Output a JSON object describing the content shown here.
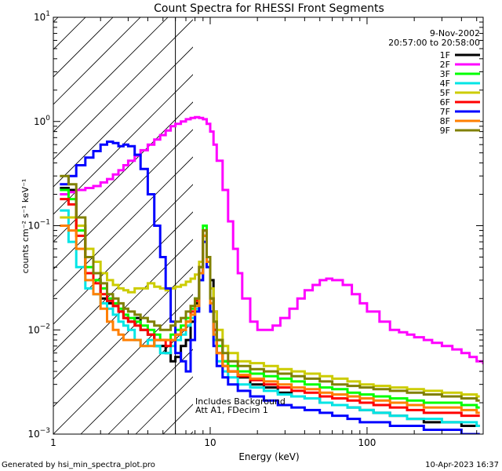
{
  "chart_data": {
    "type": "line",
    "title": "Count Spectra for RHESSI Front Segments",
    "xlabel": "Energy (keV)",
    "ylabel": "counts cm⁻² s⁻¹ keV⁻¹",
    "x_scale": "log",
    "y_scale": "log",
    "xlim": [
      1,
      550
    ],
    "ylim": [
      0.001,
      10
    ],
    "x_ticks": [
      {
        "value": 1,
        "label": "1"
      },
      {
        "value": 10,
        "label": "10"
      },
      {
        "value": 100,
        "label": "100"
      }
    ],
    "y_ticks": [
      {
        "value": 0.001,
        "base": "10",
        "exp": "−3"
      },
      {
        "value": 0.01,
        "base": "10",
        "exp": "−2"
      },
      {
        "value": 0.1,
        "base": "10",
        "exp": "−1"
      },
      {
        "value": 1,
        "base": "10",
        "exp": "0"
      },
      {
        "value": 10,
        "base": "10",
        "exp": "1"
      }
    ],
    "date": "9-Nov-2002",
    "time_range": "20:57:00 to 20:58:00",
    "annotations": [
      "Includes Background",
      "Att A1, FDecim 1"
    ],
    "shaded_region_kev": [
      1,
      6
    ],
    "footer_left": "Generated by hsi_min_spectra_plot.pro",
    "footer_right": "10-Apr-2023 16:37",
    "series": [
      {
        "name": "1F",
        "color": "#000000",
        "x": [
          1.1,
          1.25,
          1.4,
          1.6,
          1.8,
          2,
          2.2,
          2.4,
          2.6,
          2.8,
          3,
          3.3,
          3.6,
          4,
          4.4,
          4.8,
          5.2,
          5.6,
          6,
          6.5,
          7,
          7.5,
          8,
          8.5,
          9,
          9.5,
          10,
          10.5,
          11,
          12,
          13,
          15,
          18,
          22,
          27,
          33,
          40,
          50,
          60,
          75,
          90,
          110,
          140,
          180,
          230,
          300,
          400,
          500
        ],
        "y": [
          0.23,
          0.22,
          0.1,
          0.035,
          0.03,
          0.02,
          0.018,
          0.017,
          0.015,
          0.013,
          0.012,
          0.013,
          0.01,
          0.009,
          0.007,
          0.007,
          0.006,
          0.005,
          0.0055,
          0.007,
          0.008,
          0.012,
          0.018,
          0.035,
          0.08,
          0.05,
          0.03,
          0.015,
          0.008,
          0.005,
          0.004,
          0.0035,
          0.003,
          0.0028,
          0.0025,
          0.0023,
          0.0022,
          0.002,
          0.0019,
          0.0018,
          0.0017,
          0.0016,
          0.0015,
          0.0014,
          0.0013,
          0.0013,
          0.0012,
          0.0012
        ]
      },
      {
        "name": "2F",
        "color": "#ff00ff",
        "x": [
          1.1,
          1.25,
          1.4,
          1.6,
          1.8,
          2,
          2.2,
          2.4,
          2.6,
          2.8,
          3,
          3.3,
          3.6,
          4,
          4.4,
          4.8,
          5.2,
          5.6,
          6,
          6.5,
          7,
          7.5,
          8,
          8.5,
          9,
          9.5,
          10,
          10.5,
          11,
          12,
          13,
          14,
          15,
          16,
          18,
          20,
          22,
          25,
          28,
          32,
          36,
          40,
          45,
          50,
          55,
          60,
          70,
          80,
          90,
          100,
          120,
          140,
          160,
          180,
          200,
          230,
          260,
          300,
          350,
          400,
          450,
          500,
          550
        ],
        "y": [
          0.2,
          0.21,
          0.22,
          0.23,
          0.24,
          0.26,
          0.28,
          0.31,
          0.34,
          0.38,
          0.42,
          0.47,
          0.53,
          0.6,
          0.67,
          0.74,
          0.82,
          0.9,
          0.95,
          1.0,
          1.05,
          1.08,
          1.1,
          1.08,
          1.05,
          0.95,
          0.8,
          0.6,
          0.42,
          0.22,
          0.11,
          0.06,
          0.035,
          0.02,
          0.012,
          0.01,
          0.01,
          0.011,
          0.013,
          0.016,
          0.02,
          0.024,
          0.027,
          0.03,
          0.031,
          0.03,
          0.027,
          0.022,
          0.018,
          0.015,
          0.012,
          0.01,
          0.0095,
          0.009,
          0.0085,
          0.008,
          0.0075,
          0.007,
          0.0065,
          0.006,
          0.0055,
          0.005,
          0.0048
        ]
      },
      {
        "name": "3F",
        "color": "#00ff00",
        "x": [
          1.1,
          1.25,
          1.4,
          1.6,
          1.8,
          2,
          2.2,
          2.4,
          2.6,
          2.8,
          3,
          3.3,
          3.6,
          4,
          4.4,
          4.8,
          5.2,
          5.6,
          6,
          6.5,
          7,
          7.5,
          8,
          8.5,
          9,
          9.5,
          10,
          10.5,
          11,
          12,
          13,
          15,
          18,
          22,
          27,
          33,
          40,
          50,
          60,
          75,
          90,
          110,
          140,
          180,
          230,
          300,
          400,
          500
        ],
        "y": [
          0.22,
          0.18,
          0.09,
          0.04,
          0.03,
          0.025,
          0.02,
          0.018,
          0.016,
          0.014,
          0.013,
          0.012,
          0.011,
          0.01,
          0.009,
          0.008,
          0.008,
          0.009,
          0.01,
          0.011,
          0.013,
          0.016,
          0.02,
          0.04,
          0.1,
          0.05,
          0.02,
          0.01,
          0.007,
          0.005,
          0.0045,
          0.004,
          0.0038,
          0.0036,
          0.0034,
          0.0032,
          0.003,
          0.0028,
          0.0027,
          0.0025,
          0.0024,
          0.0023,
          0.0022,
          0.0021,
          0.002,
          0.002,
          0.0019,
          0.0018
        ]
      },
      {
        "name": "4F",
        "color": "#00e5e5",
        "x": [
          1.1,
          1.25,
          1.4,
          1.6,
          1.8,
          2,
          2.2,
          2.4,
          2.6,
          2.8,
          3,
          3.3,
          3.6,
          4,
          4.4,
          4.8,
          5.2,
          5.6,
          6,
          6.5,
          7,
          7.5,
          8,
          8.5,
          9,
          9.5,
          10,
          10.5,
          11,
          12,
          13,
          15,
          18,
          22,
          27,
          33,
          40,
          50,
          60,
          75,
          90,
          110,
          140,
          180,
          230,
          300,
          400,
          500
        ],
        "y": [
          0.14,
          0.07,
          0.04,
          0.025,
          0.022,
          0.018,
          0.016,
          0.014,
          0.012,
          0.011,
          0.01,
          0.008,
          0.007,
          0.008,
          0.007,
          0.006,
          0.006,
          0.007,
          0.008,
          0.009,
          0.011,
          0.013,
          0.016,
          0.03,
          0.07,
          0.04,
          0.015,
          0.008,
          0.005,
          0.004,
          0.0035,
          0.003,
          0.0028,
          0.0026,
          0.0024,
          0.0023,
          0.0022,
          0.002,
          0.0019,
          0.0018,
          0.0017,
          0.0016,
          0.0015,
          0.0014,
          0.0014,
          0.0013,
          0.0013,
          0.0012
        ]
      },
      {
        "name": "5F",
        "color": "#cccc00",
        "x": [
          1.1,
          1.25,
          1.4,
          1.6,
          1.8,
          2,
          2.2,
          2.4,
          2.6,
          2.8,
          3,
          3.3,
          3.6,
          4,
          4.4,
          4.8,
          5.2,
          5.6,
          6,
          6.5,
          7,
          7.5,
          8,
          8.5,
          9,
          9.5,
          10,
          10.5,
          11,
          12,
          13,
          15,
          18,
          22,
          27,
          33,
          40,
          50,
          60,
          75,
          90,
          110,
          140,
          180,
          230,
          300,
          400,
          500
        ],
        "y": [
          0.12,
          0.12,
          0.1,
          0.06,
          0.045,
          0.035,
          0.03,
          0.027,
          0.025,
          0.024,
          0.023,
          0.025,
          0.025,
          0.028,
          0.026,
          0.025,
          0.024,
          0.025,
          0.026,
          0.027,
          0.029,
          0.031,
          0.034,
          0.045,
          0.08,
          0.05,
          0.025,
          0.015,
          0.01,
          0.007,
          0.006,
          0.005,
          0.0048,
          0.0045,
          0.0042,
          0.004,
          0.0038,
          0.0036,
          0.0034,
          0.0032,
          0.003,
          0.0029,
          0.0028,
          0.0027,
          0.0026,
          0.0025,
          0.0024,
          0.0023
        ]
      },
      {
        "name": "6F",
        "color": "#ff0000",
        "x": [
          1.1,
          1.25,
          1.4,
          1.6,
          1.8,
          2,
          2.2,
          2.4,
          2.6,
          2.8,
          3,
          3.3,
          3.6,
          4,
          4.4,
          4.8,
          5.2,
          5.6,
          6,
          6.5,
          7,
          7.5,
          8,
          8.5,
          9,
          9.5,
          10,
          10.5,
          11,
          12,
          13,
          15,
          18,
          22,
          27,
          33,
          40,
          50,
          60,
          75,
          90,
          110,
          140,
          180,
          230,
          300,
          400,
          500
        ],
        "y": [
          0.18,
          0.16,
          0.08,
          0.035,
          0.028,
          0.022,
          0.019,
          0.017,
          0.015,
          0.013,
          0.012,
          0.011,
          0.01,
          0.009,
          0.008,
          0.008,
          0.007,
          0.008,
          0.009,
          0.01,
          0.012,
          0.015,
          0.019,
          0.04,
          0.09,
          0.05,
          0.02,
          0.01,
          0.006,
          0.0045,
          0.004,
          0.0036,
          0.0033,
          0.003,
          0.0028,
          0.0026,
          0.0025,
          0.0023,
          0.0022,
          0.0021,
          0.002,
          0.0019,
          0.0018,
          0.0017,
          0.0016,
          0.0016,
          0.0015,
          0.0015
        ]
      },
      {
        "name": "7F",
        "color": "#0000ff",
        "x": [
          1.1,
          1.25,
          1.4,
          1.6,
          1.8,
          2,
          2.2,
          2.4,
          2.6,
          2.8,
          3,
          3.3,
          3.6,
          4,
          4.4,
          4.8,
          5.2,
          5.6,
          6,
          6.5,
          7,
          7.5,
          8,
          8.5,
          9,
          9.5,
          10,
          10.5,
          11,
          12,
          13,
          15,
          18,
          22,
          27,
          33,
          40,
          50,
          60,
          75,
          90,
          110,
          140,
          180,
          230,
          300,
          400,
          500
        ],
        "y": [
          0.25,
          0.3,
          0.38,
          0.45,
          0.52,
          0.6,
          0.64,
          0.62,
          0.58,
          0.6,
          0.58,
          0.48,
          0.35,
          0.2,
          0.1,
          0.05,
          0.025,
          0.012,
          0.006,
          0.005,
          0.004,
          0.008,
          0.015,
          0.03,
          0.07,
          0.04,
          0.015,
          0.007,
          0.0045,
          0.0035,
          0.003,
          0.0026,
          0.0023,
          0.0021,
          0.0019,
          0.0018,
          0.0017,
          0.0016,
          0.0015,
          0.0014,
          0.0013,
          0.0013,
          0.0012,
          0.0012,
          0.0011,
          0.0011,
          0.001,
          0.001
        ]
      },
      {
        "name": "8F",
        "color": "#ff7f00",
        "x": [
          1.1,
          1.25,
          1.4,
          1.6,
          1.8,
          2,
          2.2,
          2.4,
          2.6,
          2.8,
          3,
          3.3,
          3.6,
          4,
          4.4,
          4.8,
          5.2,
          5.6,
          6,
          6.5,
          7,
          7.5,
          8,
          8.5,
          9,
          9.5,
          10,
          10.5,
          11,
          12,
          13,
          15,
          18,
          22,
          27,
          33,
          40,
          50,
          60,
          75,
          90,
          110,
          140,
          180,
          230,
          300,
          400,
          500
        ],
        "y": [
          0.1,
          0.09,
          0.06,
          0.03,
          0.022,
          0.016,
          0.012,
          0.01,
          0.009,
          0.008,
          0.008,
          0.008,
          0.007,
          0.007,
          0.008,
          0.008,
          0.008,
          0.008,
          0.009,
          0.01,
          0.012,
          0.014,
          0.017,
          0.035,
          0.08,
          0.045,
          0.018,
          0.009,
          0.006,
          0.0045,
          0.004,
          0.0037,
          0.0034,
          0.0032,
          0.003,
          0.0028,
          0.0027,
          0.0025,
          0.0024,
          0.0023,
          0.0022,
          0.0021,
          0.002,
          0.0019,
          0.0018,
          0.0018,
          0.0017,
          0.0016
        ]
      },
      {
        "name": "9F",
        "color": "#808000",
        "x": [
          1.1,
          1.25,
          1.4,
          1.6,
          1.8,
          2,
          2.2,
          2.4,
          2.6,
          2.8,
          3,
          3.3,
          3.6,
          4,
          4.4,
          4.8,
          5.2,
          5.6,
          6,
          6.5,
          7,
          7.5,
          8,
          8.5,
          9,
          9.5,
          10,
          10.5,
          11,
          12,
          13,
          15,
          18,
          22,
          27,
          33,
          40,
          50,
          60,
          75,
          90,
          110,
          140,
          180,
          230,
          300,
          400,
          500
        ],
        "y": [
          0.3,
          0.25,
          0.12,
          0.05,
          0.035,
          0.028,
          0.022,
          0.02,
          0.018,
          0.016,
          0.015,
          0.014,
          0.013,
          0.012,
          0.011,
          0.01,
          0.01,
          0.011,
          0.012,
          0.013,
          0.015,
          0.017,
          0.02,
          0.04,
          0.09,
          0.05,
          0.02,
          0.012,
          0.008,
          0.006,
          0.005,
          0.0045,
          0.0042,
          0.004,
          0.0038,
          0.0036,
          0.0034,
          0.0032,
          0.003,
          0.0029,
          0.0028,
          0.0027,
          0.0026,
          0.0025,
          0.0024,
          0.0023,
          0.0022,
          0.0021
        ]
      }
    ]
  }
}
